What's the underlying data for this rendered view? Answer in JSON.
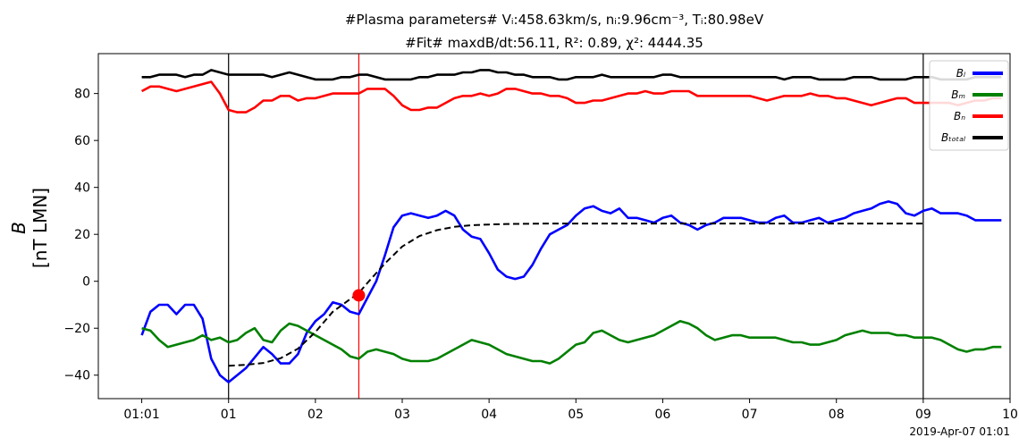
{
  "chart_data": {
    "type": "line",
    "title_line1": "#Plasma parameters# Vᵢ:458.63km/s, nᵢ:9.96cm⁻³, Tᵢ:80.98eV",
    "title_line2": "#Fit# maxdB/dt:56.11, R²: 0.89, χ²: 4444.35",
    "ylabel_line1": "B",
    "ylabel_line2": "[nT LMN]",
    "xlabel": "",
    "footer_text": "2019-Apr-07 01:01",
    "xlim": [
      0.0,
      10.5
    ],
    "ylim": [
      -50,
      97
    ],
    "x_ticks": [
      {
        "x": 0.5,
        "label": "01:01"
      },
      {
        "x": 1.5,
        "label": "01"
      },
      {
        "x": 2.5,
        "label": "02"
      },
      {
        "x": 3.5,
        "label": "03"
      },
      {
        "x": 4.5,
        "label": "04"
      },
      {
        "x": 5.5,
        "label": "05"
      },
      {
        "x": 6.5,
        "label": "06"
      },
      {
        "x": 7.5,
        "label": "07"
      },
      {
        "x": 8.5,
        "label": "08"
      },
      {
        "x": 9.5,
        "label": "09"
      },
      {
        "x": 10.5,
        "label": "10"
      }
    ],
    "y_ticks": [
      -40,
      -20,
      0,
      20,
      40,
      60,
      80
    ],
    "grid": false,
    "legend_position": "top-right",
    "vlines": [
      {
        "x": 1.5,
        "color": "#000000"
      },
      {
        "x": 3.0,
        "color": "#ff0000"
      },
      {
        "x": 9.5,
        "color": "#000000"
      }
    ],
    "marker": {
      "x": 3.0,
      "y": -6,
      "color": "#ff0000"
    },
    "series": [
      {
        "name": "Bₗ",
        "color": "#0000ff",
        "x": [
          0.5,
          0.6,
          0.7,
          0.8,
          0.9,
          1.0,
          1.1,
          1.2,
          1.3,
          1.4,
          1.5,
          1.7,
          1.9,
          2.0,
          2.1,
          2.2,
          2.3,
          2.4,
          2.5,
          2.6,
          2.7,
          2.8,
          2.9,
          3.0,
          3.1,
          3.2,
          3.3,
          3.4,
          3.5,
          3.6,
          3.7,
          3.8,
          3.9,
          4.0,
          4.1,
          4.2,
          4.3,
          4.4,
          4.5,
          4.6,
          4.7,
          4.8,
          4.9,
          5.0,
          5.1,
          5.2,
          5.3,
          5.4,
          5.5,
          5.6,
          5.7,
          5.8,
          5.9,
          6.0,
          6.1,
          6.2,
          6.3,
          6.4,
          6.5,
          6.6,
          6.7,
          6.8,
          6.9,
          7.0,
          7.1,
          7.2,
          7.3,
          7.4,
          7.5,
          7.6,
          7.7,
          7.8,
          7.9,
          8.0,
          8.1,
          8.2,
          8.3,
          8.4,
          8.5,
          8.6,
          8.7,
          8.8,
          8.9,
          9.0,
          9.1,
          9.2,
          9.3,
          9.4,
          9.5,
          9.6,
          9.7,
          9.8,
          9.9,
          10.0,
          10.1,
          10.2,
          10.3,
          10.4
        ],
        "values": [
          -23,
          -13,
          -10,
          -10,
          -14,
          -10,
          -10,
          -16,
          -33,
          -40,
          -43,
          -37,
          -28,
          -31,
          -35,
          -35,
          -31,
          -22,
          -17,
          -14,
          -9,
          -10,
          -13,
          -14,
          -7,
          0,
          11,
          23,
          28,
          29,
          28,
          27,
          28,
          30,
          28,
          22,
          19,
          18,
          12,
          5,
          2,
          1,
          2,
          7,
          14,
          20,
          22,
          24,
          28,
          31,
          32,
          30,
          29,
          31,
          27,
          27,
          26,
          25,
          27,
          28,
          25,
          24,
          22,
          24,
          25,
          27,
          27,
          27,
          26,
          25,
          25,
          27,
          28,
          25,
          25,
          26,
          27,
          25,
          26,
          27,
          29,
          30,
          31,
          33,
          34,
          33,
          29,
          28,
          30,
          31,
          29,
          29,
          29,
          28,
          26,
          26,
          26,
          26
        ]
      },
      {
        "name": "Bₘ",
        "color": "#008000",
        "x": [
          0.5,
          0.6,
          0.7,
          0.8,
          0.9,
          1.0,
          1.1,
          1.2,
          1.3,
          1.4,
          1.5,
          1.6,
          1.7,
          1.8,
          1.9,
          2.0,
          2.1,
          2.2,
          2.3,
          2.4,
          2.5,
          2.6,
          2.7,
          2.8,
          2.9,
          3.0,
          3.1,
          3.2,
          3.3,
          3.4,
          3.5,
          3.6,
          3.7,
          3.8,
          3.9,
          4.0,
          4.1,
          4.2,
          4.3,
          4.4,
          4.5,
          4.6,
          4.7,
          4.8,
          4.9,
          5.0,
          5.1,
          5.2,
          5.3,
          5.4,
          5.5,
          5.6,
          5.7,
          5.8,
          5.9,
          6.0,
          6.1,
          6.2,
          6.3,
          6.4,
          6.5,
          6.6,
          6.7,
          6.8,
          6.9,
          7.0,
          7.1,
          7.2,
          7.3,
          7.4,
          7.5,
          7.6,
          7.7,
          7.8,
          7.9,
          8.0,
          8.1,
          8.2,
          8.3,
          8.4,
          8.5,
          8.6,
          8.7,
          8.8,
          8.9,
          9.0,
          9.1,
          9.2,
          9.3,
          9.4,
          9.5,
          9.6,
          9.7,
          9.8,
          9.9,
          10.0,
          10.1,
          10.2,
          10.3,
          10.4
        ],
        "values": [
          -20,
          -21,
          -25,
          -28,
          -27,
          -26,
          -25,
          -23,
          -25,
          -24,
          -26,
          -25,
          -22,
          -20,
          -25,
          -26,
          -21,
          -18,
          -19,
          -21,
          -23,
          -25,
          -27,
          -29,
          -32,
          -33,
          -30,
          -29,
          -30,
          -31,
          -33,
          -34,
          -34,
          -34,
          -33,
          -31,
          -29,
          -27,
          -25,
          -26,
          -27,
          -29,
          -31,
          -32,
          -33,
          -34,
          -34,
          -35,
          -33,
          -30,
          -27,
          -26,
          -22,
          -21,
          -23,
          -25,
          -26,
          -25,
          -24,
          -23,
          -21,
          -19,
          -17,
          -18,
          -20,
          -23,
          -25,
          -24,
          -23,
          -23,
          -24,
          -24,
          -24,
          -24,
          -25,
          -26,
          -26,
          -27,
          -27,
          -26,
          -25,
          -23,
          -22,
          -21,
          -22,
          -22,
          -22,
          -23,
          -23,
          -24,
          -24,
          -24,
          -25,
          -27,
          -29,
          -30,
          -29,
          -29,
          -28,
          -28
        ]
      },
      {
        "name": "Bₙ",
        "color": "#ff0000",
        "x": [
          0.5,
          0.6,
          0.7,
          0.8,
          0.9,
          1.0,
          1.1,
          1.2,
          1.3,
          1.4,
          1.5,
          1.6,
          1.7,
          1.8,
          1.9,
          2.0,
          2.1,
          2.2,
          2.3,
          2.4,
          2.5,
          2.6,
          2.7,
          2.8,
          2.9,
          3.0,
          3.1,
          3.2,
          3.3,
          3.4,
          3.5,
          3.6,
          3.7,
          3.8,
          3.9,
          4.0,
          4.1,
          4.2,
          4.3,
          4.4,
          4.5,
          4.6,
          4.7,
          4.8,
          4.9,
          5.0,
          5.1,
          5.2,
          5.3,
          5.4,
          5.5,
          5.6,
          5.7,
          5.8,
          5.9,
          6.0,
          6.1,
          6.2,
          6.3,
          6.4,
          6.5,
          6.6,
          6.7,
          6.8,
          6.9,
          7.0,
          7.1,
          7.2,
          7.3,
          7.4,
          7.5,
          7.6,
          7.7,
          7.8,
          7.9,
          8.0,
          8.1,
          8.2,
          8.3,
          8.4,
          8.5,
          8.6,
          8.7,
          8.8,
          8.9,
          9.0,
          9.1,
          9.2,
          9.3,
          9.4,
          9.5,
          9.6,
          9.7,
          9.8,
          9.9,
          10.0,
          10.1,
          10.2,
          10.3,
          10.4
        ],
        "values": [
          81,
          83,
          83,
          82,
          81,
          82,
          83,
          84,
          85,
          80,
          73,
          72,
          72,
          74,
          77,
          77,
          79,
          79,
          77,
          78,
          78,
          79,
          80,
          80,
          80,
          80,
          82,
          82,
          82,
          79,
          75,
          73,
          73,
          74,
          74,
          76,
          78,
          79,
          79,
          80,
          79,
          80,
          82,
          82,
          81,
          80,
          80,
          79,
          79,
          78,
          76,
          76,
          77,
          77,
          78,
          79,
          80,
          80,
          81,
          80,
          80,
          81,
          81,
          81,
          79,
          79,
          79,
          79,
          79,
          79,
          79,
          78,
          77,
          78,
          79,
          79,
          79,
          80,
          79,
          79,
          78,
          78,
          77,
          76,
          75,
          76,
          77,
          78,
          78,
          76,
          76,
          76,
          76,
          76,
          75,
          76,
          77,
          77,
          78,
          78
        ]
      },
      {
        "name": "B_total",
        "display_name": "Bₜₒₜₐₗ",
        "color": "#000000",
        "x": [
          0.5,
          0.6,
          0.7,
          0.8,
          0.9,
          1.0,
          1.1,
          1.2,
          1.3,
          1.4,
          1.5,
          1.6,
          1.7,
          1.8,
          1.9,
          2.0,
          2.1,
          2.2,
          2.3,
          2.4,
          2.5,
          2.6,
          2.7,
          2.8,
          2.9,
          3.0,
          3.1,
          3.2,
          3.3,
          3.4,
          3.5,
          3.6,
          3.7,
          3.8,
          3.9,
          4.0,
          4.1,
          4.2,
          4.3,
          4.4,
          4.5,
          4.6,
          4.7,
          4.8,
          4.9,
          5.0,
          5.1,
          5.2,
          5.3,
          5.4,
          5.5,
          5.6,
          5.7,
          5.8,
          5.9,
          6.0,
          6.1,
          6.2,
          6.3,
          6.4,
          6.5,
          6.6,
          6.7,
          6.8,
          6.9,
          7.0,
          7.1,
          7.2,
          7.3,
          7.4,
          7.5,
          7.6,
          7.7,
          7.8,
          7.9,
          8.0,
          8.1,
          8.2,
          8.3,
          8.4,
          8.5,
          8.6,
          8.7,
          8.8,
          8.9,
          9.0,
          9.1,
          9.2,
          9.3,
          9.4,
          9.5,
          9.6,
          9.7,
          9.8,
          9.9,
          10.0,
          10.1,
          10.2,
          10.3,
          10.4
        ],
        "values": [
          87,
          87,
          88,
          88,
          88,
          87,
          88,
          88,
          90,
          89,
          88,
          88,
          88,
          88,
          88,
          87,
          88,
          89,
          88,
          87,
          86,
          86,
          86,
          87,
          87,
          88,
          88,
          87,
          86,
          86,
          86,
          86,
          87,
          87,
          88,
          88,
          88,
          89,
          89,
          90,
          90,
          89,
          89,
          88,
          88,
          87,
          87,
          87,
          86,
          86,
          87,
          87,
          87,
          88,
          87,
          87,
          87,
          87,
          87,
          87,
          88,
          88,
          87,
          87,
          87,
          87,
          87,
          87,
          87,
          87,
          87,
          87,
          87,
          87,
          86,
          87,
          87,
          87,
          86,
          86,
          86,
          86,
          87,
          87,
          87,
          86,
          86,
          86,
          86,
          87,
          87,
          87,
          86,
          86,
          86,
          86,
          87,
          87,
          87,
          87
        ]
      },
      {
        "name": "fit",
        "color": "#000000",
        "dashed": true,
        "x": [
          1.5,
          1.7,
          1.9,
          2.1,
          2.3,
          2.5,
          2.7,
          2.9,
          3.0,
          3.1,
          3.3,
          3.5,
          3.7,
          3.9,
          4.1,
          4.3,
          4.5,
          4.7,
          4.9,
          5.2,
          5.6,
          6.0,
          6.5,
          7.0,
          7.5,
          8.0,
          8.5,
          9.0,
          9.5
        ],
        "values": [
          -36,
          -35.6,
          -34.8,
          -32.8,
          -28.7,
          -21.6,
          -13,
          -7.6,
          -5,
          -0.7,
          7.6,
          14.8,
          19.3,
          21.8,
          23.2,
          23.9,
          24.2,
          24.4,
          24.5,
          24.6,
          24.6,
          24.6,
          24.6,
          24.6,
          24.6,
          24.6,
          24.6,
          24.6,
          24.6
        ]
      }
    ],
    "legend": [
      {
        "label": "Bₗ",
        "color": "#0000ff"
      },
      {
        "label": "Bₘ",
        "color": "#008000"
      },
      {
        "label": "Bₙ",
        "color": "#ff0000"
      },
      {
        "label": "Bₜₒₜₐₗ",
        "color": "#000000"
      }
    ]
  }
}
